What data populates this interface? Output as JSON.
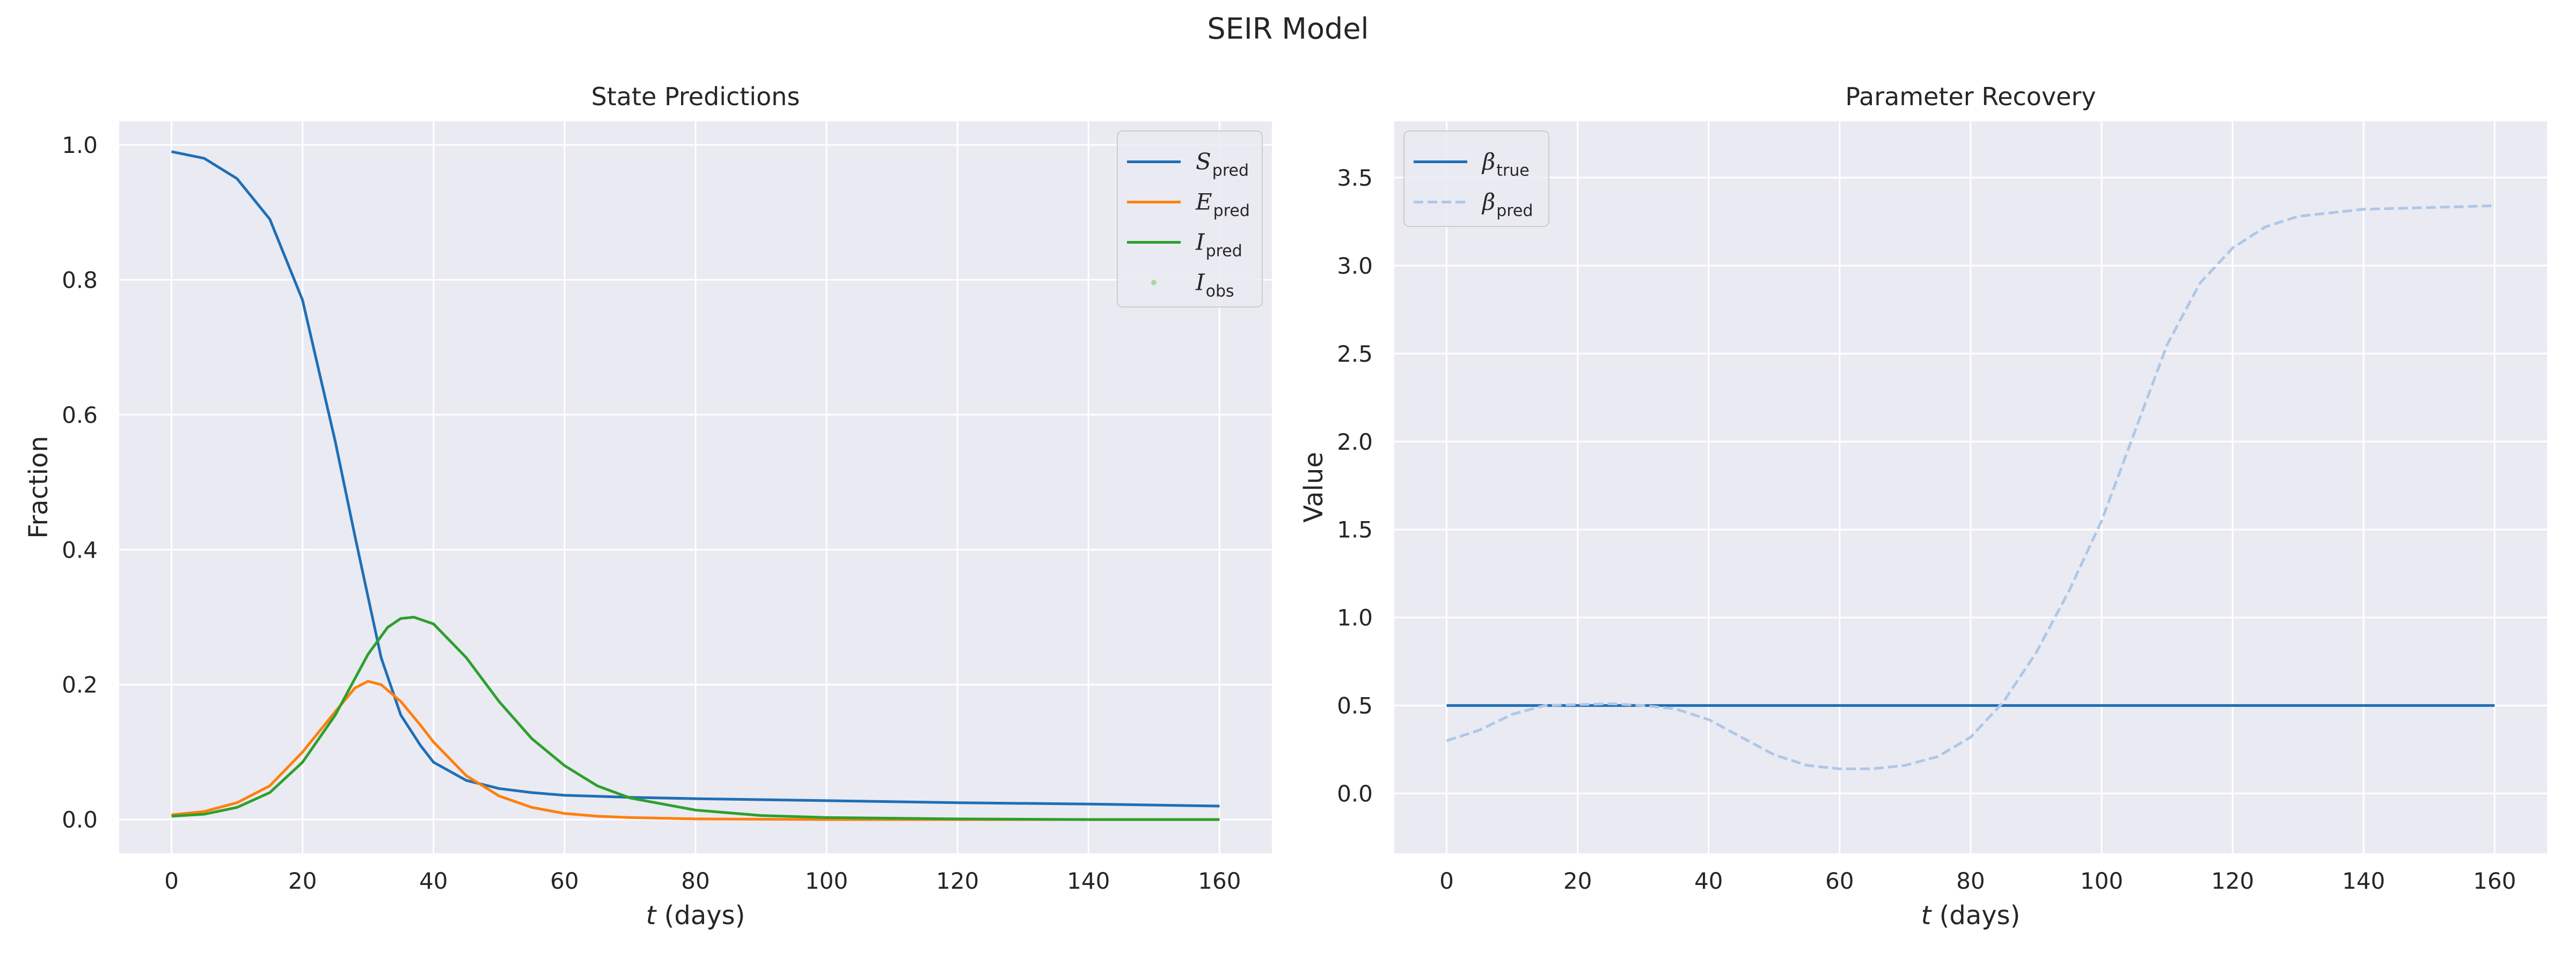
{
  "figure": {
    "title": "SEIR Model"
  },
  "colors": {
    "axes_bg": "#eaeaf2",
    "grid": "#ffffff",
    "S": "#1f6fb5",
    "E": "#ff7f0e",
    "I": "#2ca02c",
    "I_obs": "#a8d9a0",
    "beta_pred": "#aec7e8"
  },
  "chart_data": [
    {
      "type": "line",
      "title": "State Predictions",
      "xlabel_var": "t",
      "xlabel_rest": " (days)",
      "ylabel": "Fraction",
      "xlim": [
        -8,
        168
      ],
      "ylim": [
        -0.05,
        1.035
      ],
      "xticks": [
        0,
        20,
        40,
        60,
        80,
        100,
        120,
        140,
        160
      ],
      "yticks": [
        0.0,
        0.2,
        0.4,
        0.6,
        0.8,
        1.0
      ],
      "ytick_labels": [
        "0.0",
        "0.2",
        "0.4",
        "0.6",
        "0.8",
        "1.0"
      ],
      "grid": true,
      "legend_position": "top-right",
      "series": [
        {
          "key": "S",
          "legend_main": "S",
          "legend_sub": "pred",
          "style": "solid",
          "x": [
            0,
            5,
            10,
            15,
            20,
            25,
            28,
            30,
            32,
            35,
            38,
            40,
            45,
            50,
            55,
            60,
            70,
            80,
            100,
            120,
            140,
            160
          ],
          "y": [
            0.99,
            0.98,
            0.95,
            0.89,
            0.77,
            0.56,
            0.42,
            0.33,
            0.24,
            0.155,
            0.11,
            0.085,
            0.058,
            0.046,
            0.04,
            0.036,
            0.033,
            0.031,
            0.028,
            0.025,
            0.023,
            0.02
          ]
        },
        {
          "key": "E",
          "legend_main": "E",
          "legend_sub": "pred",
          "style": "solid",
          "x": [
            0,
            5,
            10,
            15,
            20,
            25,
            28,
            30,
            32,
            35,
            38,
            40,
            45,
            50,
            55,
            60,
            65,
            70,
            80,
            100,
            120,
            140,
            160
          ],
          "y": [
            0.007,
            0.012,
            0.025,
            0.05,
            0.1,
            0.16,
            0.195,
            0.205,
            0.2,
            0.175,
            0.14,
            0.115,
            0.065,
            0.035,
            0.018,
            0.009,
            0.005,
            0.003,
            0.001,
            0.0,
            0.0,
            0.0,
            0.0
          ]
        },
        {
          "key": "I",
          "legend_main": "I",
          "legend_sub": "pred",
          "style": "solid",
          "x": [
            0,
            5,
            10,
            15,
            20,
            25,
            30,
            33,
            35,
            37,
            40,
            45,
            50,
            55,
            60,
            65,
            70,
            80,
            90,
            100,
            120,
            140,
            160
          ],
          "y": [
            0.005,
            0.008,
            0.018,
            0.04,
            0.085,
            0.155,
            0.245,
            0.285,
            0.298,
            0.3,
            0.29,
            0.24,
            0.175,
            0.12,
            0.08,
            0.05,
            0.032,
            0.014,
            0.006,
            0.003,
            0.001,
            0.0,
            0.0
          ]
        },
        {
          "key": "I_obs",
          "legend_main": "I",
          "legend_sub": "obs",
          "style": "marker",
          "x": [],
          "y": []
        }
      ]
    },
    {
      "type": "line",
      "title": "Parameter Recovery",
      "xlabel_var": "t",
      "xlabel_rest": " (days)",
      "ylabel": "Value",
      "xlim": [
        -8,
        168
      ],
      "ylim": [
        -0.34,
        3.82
      ],
      "xticks": [
        0,
        20,
        40,
        60,
        80,
        100,
        120,
        140,
        160
      ],
      "yticks": [
        0.0,
        0.5,
        1.0,
        1.5,
        2.0,
        2.5,
        3.0,
        3.5
      ],
      "ytick_labels": [
        "0.0",
        "0.5",
        "1.0",
        "1.5",
        "2.0",
        "2.5",
        "3.0",
        "3.5"
      ],
      "grid": true,
      "legend_position": "top-left",
      "series": [
        {
          "key": "S",
          "legend_main": "β",
          "legend_sub": "true",
          "style": "solid",
          "x": [
            0,
            160
          ],
          "y": [
            0.5,
            0.5
          ]
        },
        {
          "key": "beta_pred",
          "legend_main": "β",
          "legend_sub": "pred",
          "style": "dashed",
          "x": [
            0,
            5,
            10,
            15,
            20,
            25,
            30,
            35,
            40,
            45,
            50,
            55,
            60,
            65,
            70,
            75,
            80,
            85,
            90,
            95,
            100,
            105,
            110,
            115,
            120,
            125,
            130,
            140,
            150,
            160
          ],
          "y": [
            0.3,
            0.36,
            0.45,
            0.5,
            0.505,
            0.51,
            0.5,
            0.48,
            0.42,
            0.32,
            0.22,
            0.16,
            0.14,
            0.14,
            0.16,
            0.21,
            0.32,
            0.52,
            0.8,
            1.15,
            1.55,
            2.05,
            2.55,
            2.9,
            3.1,
            3.22,
            3.28,
            3.32,
            3.33,
            3.34
          ]
        }
      ]
    }
  ]
}
